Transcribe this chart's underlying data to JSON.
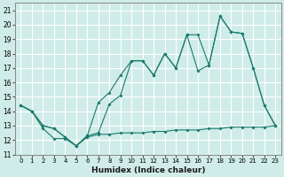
{
  "xlabel": "Humidex (Indice chaleur)",
  "xlim": [
    -0.5,
    23.5
  ],
  "ylim": [
    11,
    21.5
  ],
  "yticks": [
    11,
    12,
    13,
    14,
    15,
    16,
    17,
    18,
    19,
    20,
    21
  ],
  "xticks": [
    0,
    1,
    2,
    3,
    4,
    5,
    6,
    7,
    8,
    9,
    10,
    11,
    12,
    13,
    14,
    15,
    16,
    17,
    18,
    19,
    20,
    21,
    22,
    23
  ],
  "bg_color": "#d0ece8",
  "grid_color": "#ffffff",
  "line_color": "#1a7a6e",
  "line1_x": [
    0,
    1,
    2,
    3,
    4,
    5,
    6,
    7,
    8,
    9,
    10,
    11,
    12,
    13,
    14,
    15,
    16,
    17,
    18,
    19,
    20,
    21,
    22,
    23
  ],
  "line1_y": [
    14.4,
    14.0,
    13.0,
    12.8,
    12.2,
    11.6,
    12.3,
    14.6,
    15.3,
    16.5,
    17.5,
    17.5,
    16.5,
    18.0,
    17.0,
    19.3,
    16.8,
    17.2,
    20.6,
    19.5,
    19.4,
    17.0,
    14.4,
    13.0
  ],
  "line2_x": [
    0,
    1,
    2,
    3,
    4,
    5,
    6,
    7,
    8,
    9,
    10,
    11,
    12,
    13,
    14,
    15,
    16,
    17,
    18,
    19,
    20,
    21,
    22,
    23
  ],
  "line2_y": [
    14.4,
    14.0,
    13.0,
    12.8,
    12.2,
    11.6,
    12.3,
    12.5,
    14.5,
    15.1,
    17.5,
    17.5,
    16.5,
    18.0,
    17.0,
    19.3,
    19.3,
    17.2,
    20.6,
    19.5,
    19.4,
    17.0,
    14.4,
    13.0
  ],
  "line3_x": [
    0,
    1,
    2,
    3,
    4,
    5,
    6,
    7,
    8,
    9,
    10,
    11,
    12,
    13,
    14,
    15,
    16,
    17,
    18,
    19,
    20,
    21,
    22,
    23
  ],
  "line3_y": [
    14.4,
    14.0,
    12.8,
    12.1,
    12.1,
    11.6,
    12.2,
    12.4,
    12.4,
    12.5,
    12.5,
    12.5,
    12.6,
    12.6,
    12.7,
    12.7,
    12.7,
    12.8,
    12.8,
    12.9,
    12.9,
    12.9,
    12.9,
    13.0
  ]
}
